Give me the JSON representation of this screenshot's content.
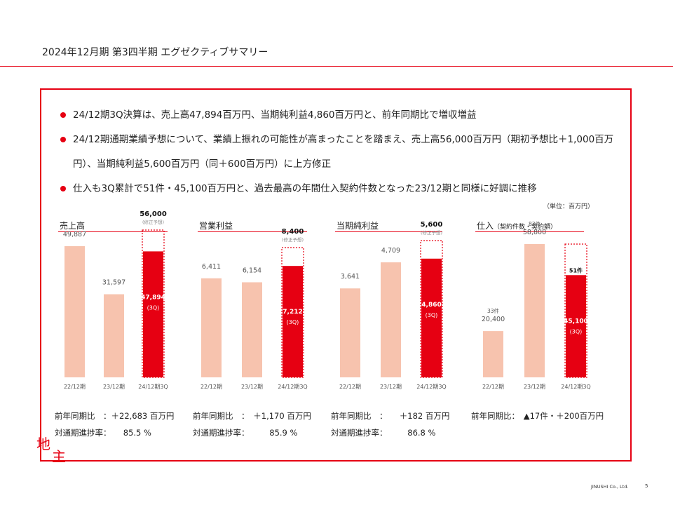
{
  "header": {
    "title": "2024年12月期 第3四半期 エグゼクティブサマリー"
  },
  "bullets": [
    "24/12期3Q決算は、売上高47,894百万円、当期純利益4,860百万円と、前年同期比で増収増益",
    "24/12期通期業績予想について、業績上振れの可能性が高まったことを踏まえ、売上高56,000百万円（期初予想比＋1,000百万円）、当期純利益5,600百万円（同＋600百万円）に上方修正",
    "仕入も3Q累計で51件・45,100百万円と、過去最高の年間仕入契約件数となった23/12期と同様に好調に推移"
  ],
  "unit_label": "（単位：百万円）",
  "colors": {
    "accent": "#e60012",
    "past_bar": "#f7c3ae",
    "forecast_border": "#e60012"
  },
  "chart_data": [
    {
      "type": "bar",
      "title": "売上高",
      "subtitle": "",
      "categories": [
        "22/12期",
        "23/12期",
        "24/12期3Q"
      ],
      "values": [
        49887,
        31597,
        47894
      ],
      "labels": [
        "49,887",
        "31,597",
        "47,894"
      ],
      "current_sublabel": "(3Q)",
      "forecast": {
        "value": 56000,
        "label": "56,000",
        "note": "(修正予想)"
      },
      "ylim": [
        0,
        60000
      ]
    },
    {
      "type": "bar",
      "title": "営業利益",
      "subtitle": "",
      "categories": [
        "22/12期",
        "23/12期",
        "24/12期3Q"
      ],
      "values": [
        6411,
        6154,
        7212
      ],
      "labels": [
        "6,411",
        "6,154",
        "7,212"
      ],
      "current_sublabel": "(3Q)",
      "forecast": {
        "value": 8400,
        "label": "8,400",
        "note": "(修正予想)"
      },
      "ylim": [
        0,
        9000
      ]
    },
    {
      "type": "bar",
      "title": "当期純利益",
      "subtitle": "",
      "categories": [
        "22/12期",
        "23/12期",
        "24/12期3Q"
      ],
      "values": [
        3641,
        4709,
        4860
      ],
      "labels": [
        "3,641",
        "4,709",
        "4,860"
      ],
      "current_sublabel": "(3Q)",
      "forecast": {
        "value": 5600,
        "label": "5,600",
        "note": "(修正予想)"
      },
      "ylim": [
        0,
        6000
      ]
    },
    {
      "type": "bar",
      "title": "仕入",
      "subtitle": "（契約件数・契約額）",
      "categories": [
        "22/12期",
        "23/12期",
        "24/12期3Q"
      ],
      "values": [
        20400,
        58800,
        45100
      ],
      "labels": [
        "20,400",
        "58,800",
        "45,100"
      ],
      "counts": [
        "33件",
        "83件",
        "51件"
      ],
      "current_sublabel": "(3Q)",
      "forecast": {
        "value": 58800,
        "label": "",
        "note": ""
      },
      "ylim": [
        0,
        70000
      ]
    }
  ],
  "notes": [
    {
      "line1": "前年同期比　：＋22,683 百万円",
      "line2": "対通期進捗率：　　85.5 %"
    },
    {
      "line1": "前年同期比　：　＋1,170 百万円",
      "line2": "対通期進捗率：　　　85.9 %"
    },
    {
      "line1": "前年同期比　：　　＋182 百万円",
      "line2": "対通期進捗率：　　　86.8 %"
    },
    {
      "line1": "前年同期比：　▲17件・＋200百万円",
      "line2": ""
    }
  ],
  "logo": {
    "text": "地主"
  },
  "footer": {
    "company": "JINUSHI Co., Ltd.",
    "page": "5"
  }
}
